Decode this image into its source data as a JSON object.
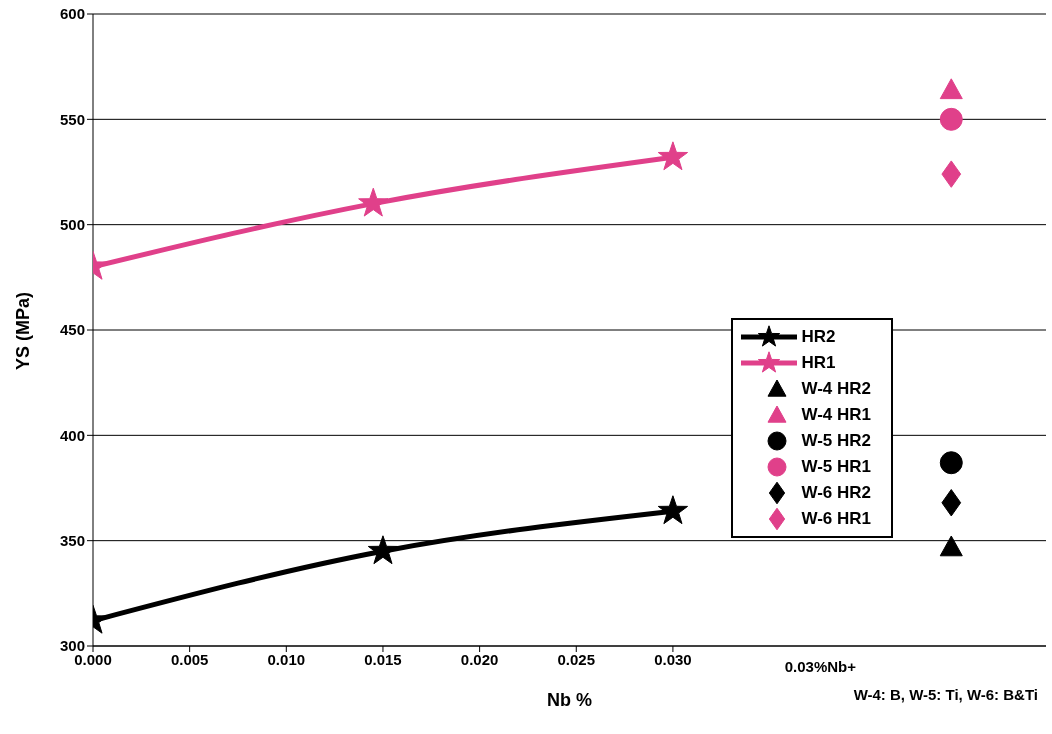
{
  "chart_data": {
    "type": "line",
    "xlabel": "Nb %",
    "ylabel": "YS (MPa)",
    "xlim": [
      0,
      0.0493
    ],
    "xticks": [
      {
        "value": 0,
        "label": "0.000"
      },
      {
        "value": 0.005,
        "label": "0.005"
      },
      {
        "value": 0.01,
        "label": "0.010"
      },
      {
        "value": 0.015,
        "label": "0.015"
      },
      {
        "value": 0.02,
        "label": "0.020"
      },
      {
        "value": 0.025,
        "label": "0.025"
      },
      {
        "value": 0.03,
        "label": "0.030"
      }
    ],
    "ylim": [
      300,
      600
    ],
    "yticks": [
      300,
      350,
      400,
      450,
      500,
      550,
      600
    ],
    "grid": "y",
    "legend": "right",
    "series": [
      {
        "name": "HR2",
        "color": "#000000",
        "marker": "star",
        "x": [
          0,
          0.015,
          0.03
        ],
        "values": [
          312,
          345,
          364
        ]
      },
      {
        "name": "HR1",
        "color": "#e0408a",
        "marker": "star",
        "x": [
          0,
          0.0145,
          0.03
        ],
        "values": [
          480,
          510,
          532
        ]
      },
      {
        "name": "W-4 HR2",
        "color": "#000000",
        "type": "scatter",
        "marker": "triangle",
        "x": [
          0.0444
        ],
        "values": [
          347
        ]
      },
      {
        "name": "W-4 HR1",
        "color": "#e0408a",
        "type": "scatter",
        "marker": "triangle",
        "x": [
          0.0444
        ],
        "values": [
          564
        ]
      },
      {
        "name": "W-5 HR2",
        "color": "#000000",
        "type": "scatter",
        "marker": "circle",
        "x": [
          0.0444
        ],
        "values": [
          387
        ]
      },
      {
        "name": "W-5 HR1",
        "color": "#e0408a",
        "type": "scatter",
        "marker": "circle",
        "x": [
          0.0444
        ],
        "values": [
          550
        ]
      },
      {
        "name": "W-6 HR2",
        "color": "#000000",
        "type": "scatter",
        "marker": "diamond",
        "x": [
          0.0444
        ],
        "values": [
          368
        ]
      },
      {
        "name": "W-6 HR1",
        "color": "#e0408a",
        "type": "scatter",
        "marker": "diamond",
        "x": [
          0.0444
        ],
        "values": [
          524
        ]
      }
    ],
    "annotations": [
      "0.03%Nb+",
      "W-4: B, W-5: Ti, W-6: B&Ti"
    ]
  }
}
